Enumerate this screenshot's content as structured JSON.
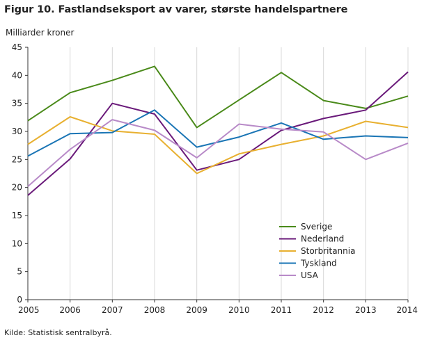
{
  "header": {
    "title": "Figur 10. Fastlandseksport av varer, største handelspartnere"
  },
  "footer": {
    "source": "Kilde: Statistisk sentralbyrå."
  },
  "chart_data": {
    "type": "line",
    "ylabel": "Milliarder  kroner",
    "x": [
      "2005",
      "2006",
      "2007",
      "2008",
      "2009",
      "2010",
      "2011",
      "2012",
      "2013",
      "2014"
    ],
    "ylim": [
      0,
      45
    ],
    "yticks": [
      0,
      5,
      10,
      15,
      20,
      25,
      30,
      35,
      40,
      45
    ],
    "grid": "vertical",
    "legend_position": "bottom-right",
    "series": [
      {
        "name": "Sverige",
        "color": "#4a8a1a",
        "values": [
          31.9,
          36.9,
          39.1,
          41.6,
          30.7,
          35.6,
          40.5,
          35.5,
          34.1,
          36.3
        ]
      },
      {
        "name": "Nederland",
        "color": "#6a1a7a",
        "values": [
          18.6,
          25.1,
          35.0,
          33.1,
          23.1,
          25.0,
          30.2,
          32.3,
          33.8,
          40.6
        ]
      },
      {
        "name": "Storbritannia",
        "color": "#e8b030",
        "values": [
          27.7,
          32.6,
          30.1,
          29.5,
          22.5,
          26.0,
          27.7,
          29.2,
          31.8,
          30.7
        ]
      },
      {
        "name": "Tyskland",
        "color": "#1a75b5",
        "values": [
          25.6,
          29.6,
          29.8,
          33.8,
          27.2,
          29.0,
          31.5,
          28.6,
          29.2,
          28.9
        ]
      },
      {
        "name": "USA",
        "color": "#b88ac8",
        "values": [
          20.2,
          26.8,
          32.1,
          30.2,
          25.3,
          31.3,
          30.4,
          29.9,
          25.0,
          27.9
        ]
      }
    ]
  }
}
